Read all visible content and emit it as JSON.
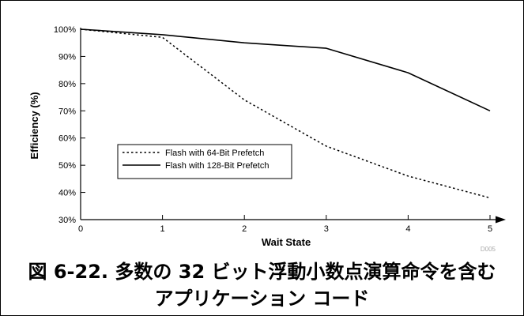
{
  "chart_data": {
    "type": "line",
    "x": [
      0,
      1,
      2,
      3,
      4,
      5
    ],
    "xticks": [
      "0",
      "1",
      "2",
      "3",
      "4",
      "5"
    ],
    "yticks": [
      "30%",
      "40%",
      "50%",
      "60%",
      "70%",
      "80%",
      "90%",
      "100%"
    ],
    "xlim": [
      0,
      5
    ],
    "ylim": [
      30,
      100
    ],
    "xlabel": "Wait State",
    "ylabel": "Efficiency (%)",
    "grid": false,
    "legend_position": "lower-left",
    "series": [
      {
        "name": "Flash with 64-Bit Prefetch",
        "style": "dotted",
        "color": "#000000",
        "values": [
          100,
          97,
          74,
          57,
          46,
          38
        ]
      },
      {
        "name": "Flash with 128-Bit Prefetch",
        "style": "solid",
        "color": "#000000",
        "values": [
          100,
          98,
          95,
          93,
          84,
          70
        ]
      }
    ],
    "code": "D005"
  },
  "caption": {
    "line1": "図 6-22. 多数の 32 ビット浮動小数点演算命令を含む",
    "line2": "アプリケーション コード"
  }
}
